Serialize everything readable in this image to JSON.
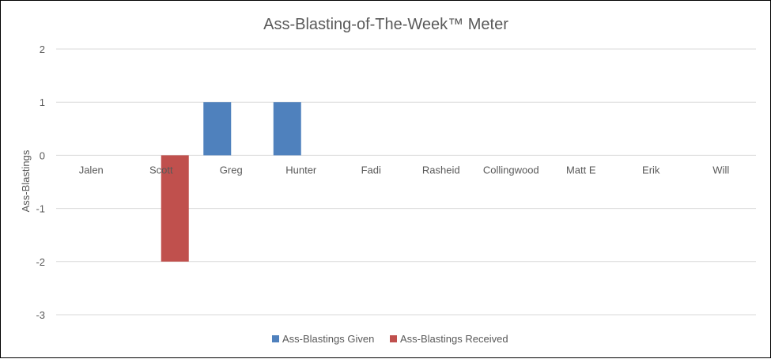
{
  "chart_data": {
    "type": "bar",
    "title": "Ass-Blasting-of-The-Week™ Meter",
    "xlabel": "",
    "ylabel": "Ass-Blastings",
    "categories": [
      "Jalen",
      "Scott",
      "Greg",
      "Hunter",
      "Fadi",
      "Rasheid",
      "Collingwood",
      "Matt E",
      "Erik",
      "Will"
    ],
    "series": [
      {
        "name": "Ass-Blastings Given",
        "color": "#4F81BD",
        "values": [
          0,
          0,
          1,
          1,
          0,
          0,
          0,
          0,
          0,
          0
        ]
      },
      {
        "name": "Ass-Blastings Received",
        "color": "#C0504D",
        "values": [
          0,
          -2,
          0,
          0,
          0,
          0,
          0,
          0,
          0,
          0
        ]
      }
    ],
    "ylim": [
      -3,
      2
    ],
    "yticks": [
      2,
      1,
      0,
      -1,
      -2,
      -3
    ],
    "grid": true,
    "legend_position": "bottom",
    "gridline_color": "#D9D9D9",
    "text_color": "#595959"
  }
}
